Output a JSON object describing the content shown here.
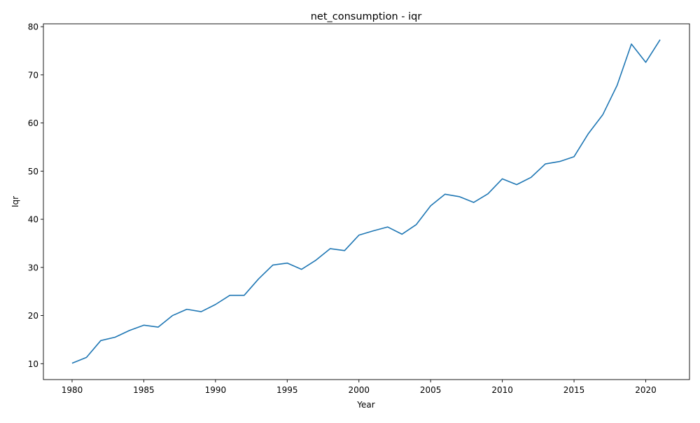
{
  "chart_data": {
    "type": "line",
    "title": "net_consumption - iqr",
    "xlabel": "Year",
    "ylabel": "Iqr",
    "xlim": [
      1978,
      2023.05
    ],
    "ylim": [
      6.7,
      80.6
    ],
    "xticks": [
      1980,
      1985,
      1990,
      1995,
      2000,
      2005,
      2010,
      2015,
      2020
    ],
    "yticks": [
      10,
      20,
      30,
      40,
      50,
      60,
      70,
      80
    ],
    "grid": false,
    "line_color": "#1f77b4",
    "series": [
      {
        "x": [
          1980,
          1981,
          1982,
          1983,
          1984,
          1985,
          1986,
          1987,
          1988,
          1989,
          1990,
          1991,
          1992,
          1993,
          1994,
          1995,
          1996,
          1997,
          1998,
          1999,
          2000,
          2001,
          2002,
          2003,
          2004,
          2005,
          2006,
          2007,
          2008,
          2009,
          2010,
          2011,
          2012,
          2013,
          2014,
          2015,
          2016,
          2017,
          2018,
          2019,
          2020,
          2021
        ],
        "values": [
          10.1,
          11.3,
          14.8,
          15.5,
          16.9,
          18.0,
          17.6,
          20.0,
          21.3,
          20.8,
          22.3,
          24.2,
          24.2,
          27.6,
          30.5,
          30.9,
          29.6,
          31.5,
          33.9,
          33.5,
          36.7,
          37.6,
          38.4,
          36.9,
          38.9,
          42.8,
          45.2,
          44.7,
          43.5,
          45.3,
          48.4,
          47.2,
          48.7,
          51.5,
          52.0,
          53.0,
          57.8,
          61.7,
          67.8,
          76.4,
          72.6,
          77.3
        ]
      }
    ]
  }
}
